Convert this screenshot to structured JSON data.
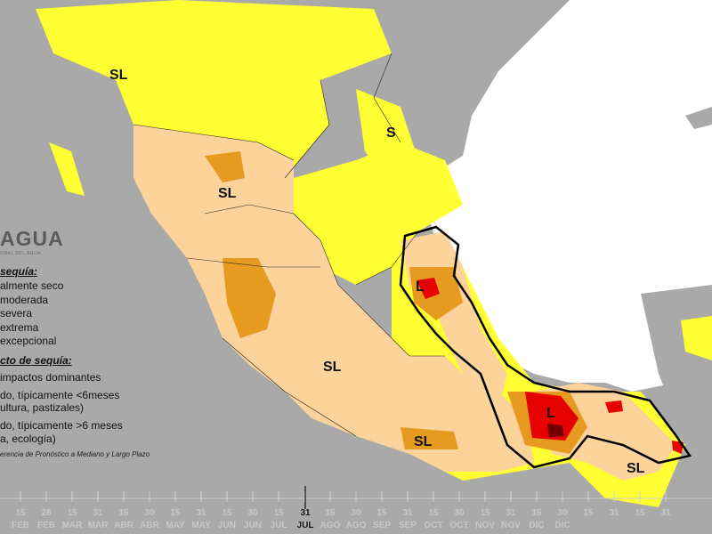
{
  "map": {
    "region_labels": [
      "SL",
      "S",
      "SL",
      "L",
      "SL",
      "L",
      "SL",
      "SL"
    ],
    "colors": {
      "ocean": "#ffffff",
      "land_no_drought": "#a9a9a9",
      "abnormally_dry": "#ffff33",
      "moderate": "#fcd39a",
      "severe": "#e69a1f",
      "extreme": "#e60000",
      "exceptional": "#730000",
      "boundary": "#111111"
    }
  },
  "organization": {
    "name": "AGUA",
    "subtitle": "ONAL DEL AGUA"
  },
  "legend": {
    "intensity_title": "sequía:",
    "intensity_items": [
      "almente seco",
      "moderada",
      "severa",
      "extrema",
      "excepcional"
    ],
    "impact_title": "cto de sequía:",
    "impact_items": [
      "impactos dominantes",
      "do, típicamente <6meses",
      "ultura, pastizales)",
      "do, típicamente >6 meses",
      "a, ecología)"
    ],
    "source": "erencia de Pronóstico a Mediano y Largo Plazo"
  },
  "timeline": {
    "ticks": [
      "15",
      "28",
      "15",
      "31",
      "15",
      "30",
      "15",
      "31",
      "15",
      "30",
      "15",
      "31",
      "15",
      "30",
      "15",
      "31",
      "15",
      "30",
      "15",
      "31",
      "15",
      "30",
      "15",
      "31",
      "15",
      "31"
    ],
    "months": [
      "FEB",
      "FEB",
      "MAR",
      "MAR",
      "ABR",
      "ABR",
      "MAY",
      "MAY",
      "JUN",
      "JUN",
      "JUL",
      "JUL",
      "AGO",
      "AGO",
      "SEP",
      "SEP",
      "OCT",
      "OCT",
      "NOV",
      "NOV",
      "DIC",
      "DIC"
    ],
    "active_day": "31",
    "active_month": "JUL"
  }
}
